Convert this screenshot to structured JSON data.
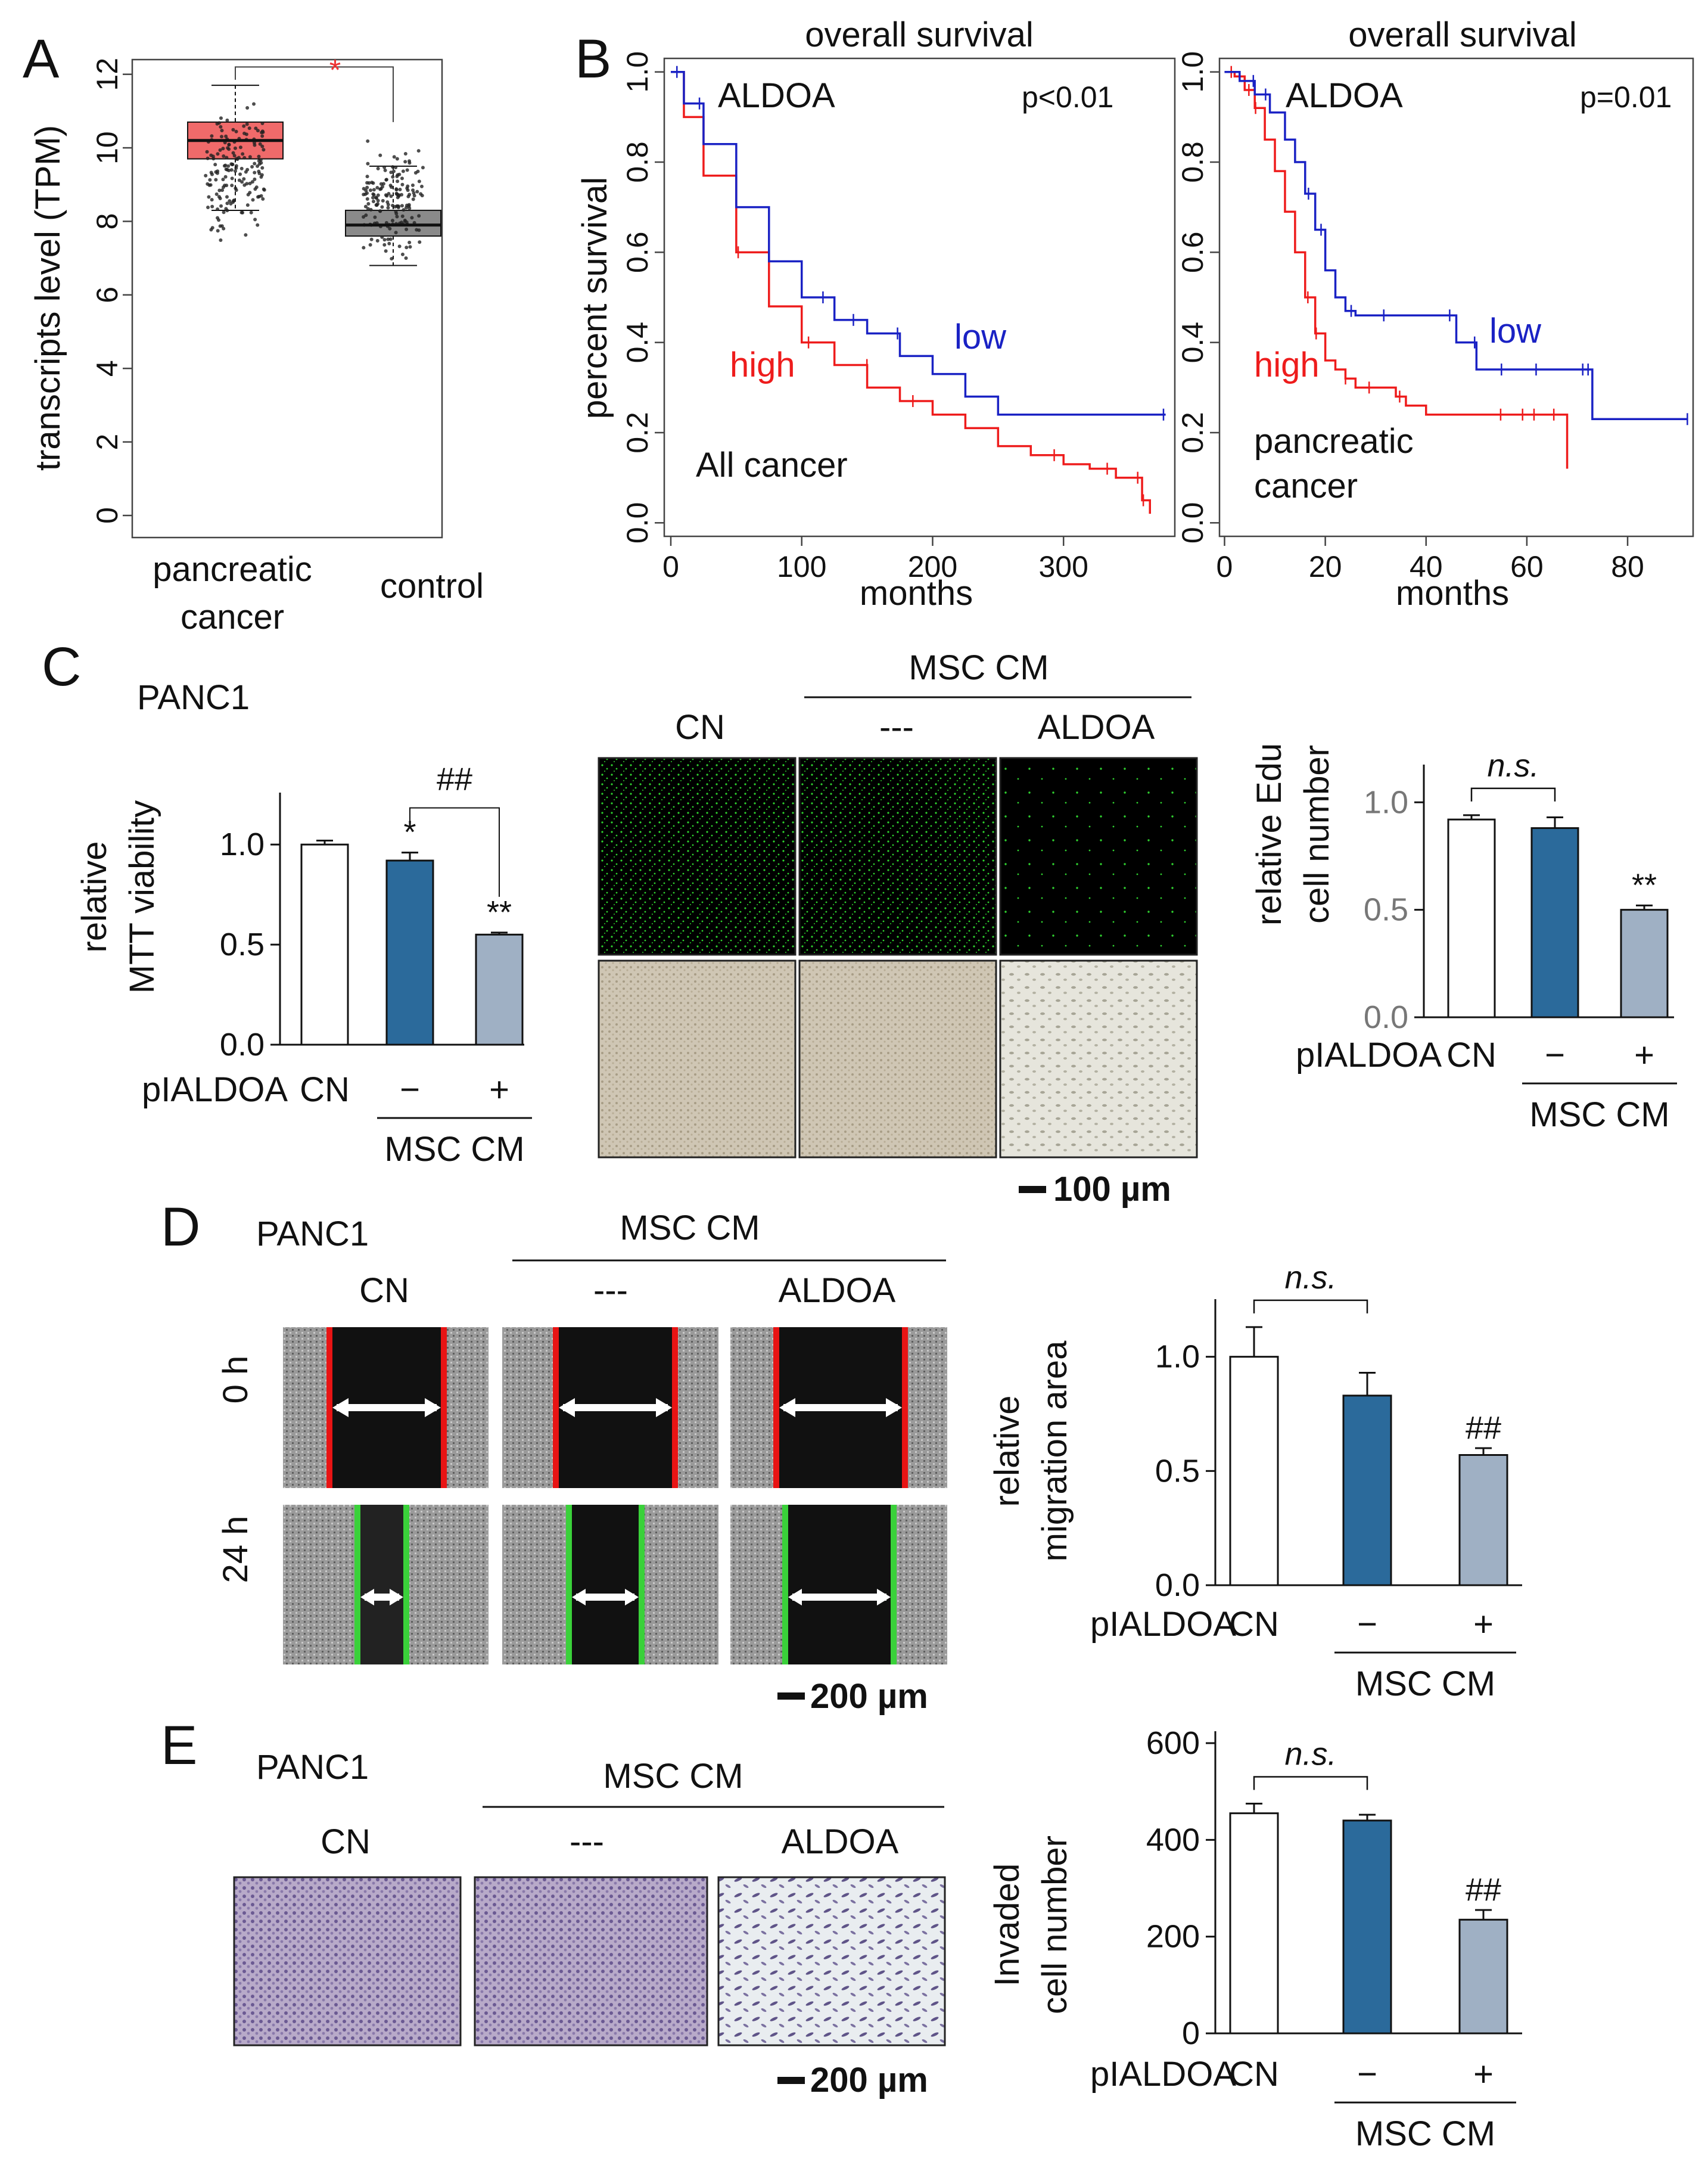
{
  "figure": {
    "panel_letters": [
      "A",
      "B",
      "C",
      "D",
      "E"
    ],
    "scale_bars": {
      "c": "100 µm",
      "d": "200 µm",
      "e": "200 µm"
    }
  },
  "colors": {
    "high_red": "#ee1c1c",
    "low_blue": "#1a22c4",
    "box_red": "#f06a6a",
    "box_gray": "#8a8a8a",
    "bar_blue": "#2b6a9b",
    "bar_gray": "#9fb0c4",
    "fluorescence_green": "#2fd12f",
    "wound_red": "#e81414",
    "wound_green": "#3ad13a"
  },
  "panel_a": {
    "ylabel": "transcripts level (TPM)",
    "categories": [
      "pancreatic cancer",
      "control"
    ],
    "significance": "*"
  },
  "panel_b": {
    "left": {
      "title": "overall survival",
      "gene": "ALDOA",
      "pvalue": "p<0.01",
      "cohort": "All cancer",
      "xlabel": "months",
      "ylabel": "percent survival",
      "high": "high",
      "low": "low"
    },
    "right": {
      "title": "overall survival",
      "gene": "ALDOA",
      "pvalue": "p=0.01",
      "cohort_line1": "pancreatic",
      "cohort_line2": "cancer",
      "xlabel": "months",
      "high": "high",
      "low": "low"
    }
  },
  "panel_c": {
    "cell_line": "PANC1",
    "mtt": {
      "ylabel_line1": "relative",
      "ylabel_line2": "MTT viability",
      "hash": "##"
    },
    "edu": {
      "ylabel_line1": "relative Edu",
      "ylabel_line2": "cell number",
      "ns": "n.s."
    },
    "images": {
      "group": "MSC CM",
      "columns": [
        "CN",
        "---",
        "ALDOA"
      ]
    }
  },
  "panel_d": {
    "cell_line": "PANC1",
    "images": {
      "group": "MSC CM",
      "columns": [
        "CN",
        "---",
        "ALDOA"
      ],
      "rows": [
        "0 h",
        "24 h"
      ]
    },
    "chart": {
      "ylabel_line1": "relative",
      "ylabel_line2": "migration area",
      "ns": "n.s."
    }
  },
  "panel_e": {
    "cell_line": "PANC1",
    "images": {
      "group": "MSC CM",
      "columns": [
        "CN",
        "---",
        "ALDOA"
      ]
    },
    "chart": {
      "ylabel_line1": "Invaded",
      "ylabel_line2": "cell number",
      "ns": "n.s."
    }
  },
  "treatment_axis": {
    "label": "pIALDOA",
    "cn": "CN",
    "minus": "−",
    "plus": "+",
    "group": "MSC CM"
  },
  "chart_data": [
    {
      "id": "A",
      "type": "box",
      "categories": [
        "pancreatic cancer",
        "control"
      ],
      "ylabel": "transcripts level (TPM)",
      "ylim": [
        -0.6,
        12.4
      ],
      "yticks": [
        0,
        2,
        4,
        6,
        8,
        10,
        12
      ],
      "boxes": [
        {
          "category": "pancreatic cancer",
          "whisker_low": 8.3,
          "q1": 9.7,
          "median": 10.2,
          "q3": 10.7,
          "whisker_high": 11.7,
          "min": 7.2,
          "max": 11.8
        },
        {
          "category": "control",
          "whisker_low": 6.8,
          "q1": 7.6,
          "median": 7.9,
          "q3": 8.3,
          "whisker_high": 9.5,
          "min": 6.4,
          "max": 10.6
        }
      ],
      "significance": "*",
      "grid": false
    },
    {
      "id": "B-left",
      "type": "line",
      "title": "overall survival",
      "xlabel": "months",
      "ylabel": "percent survival",
      "xlim": [
        -5,
        385
      ],
      "ylim": [
        -0.03,
        1.03
      ],
      "xticks": [
        0,
        100,
        200,
        300
      ],
      "yticks": [
        0.0,
        0.2,
        0.4,
        0.6,
        0.8,
        1.0
      ],
      "series": [
        {
          "name": "high",
          "x": [
            0,
            10,
            25,
            50,
            75,
            100,
            125,
            150,
            175,
            200,
            225,
            250,
            275,
            300,
            320,
            340,
            360,
            366
          ],
          "y": [
            1.0,
            0.9,
            0.77,
            0.6,
            0.48,
            0.4,
            0.35,
            0.3,
            0.27,
            0.24,
            0.21,
            0.17,
            0.15,
            0.13,
            0.12,
            0.1,
            0.05,
            0.02
          ]
        },
        {
          "name": "low",
          "x": [
            0,
            10,
            25,
            50,
            75,
            100,
            125,
            150,
            175,
            200,
            225,
            250,
            300,
            378
          ],
          "y": [
            1.0,
            0.93,
            0.84,
            0.7,
            0.58,
            0.5,
            0.45,
            0.42,
            0.37,
            0.33,
            0.28,
            0.24,
            0.24,
            0.24
          ]
        }
      ],
      "annotations": [
        "ALDOA",
        "p<0.01",
        "All cancer"
      ],
      "grid": false
    },
    {
      "id": "B-right",
      "type": "line",
      "title": "overall survival",
      "xlabel": "months",
      "xlim": [
        -1,
        93
      ],
      "ylim": [
        -0.03,
        1.03
      ],
      "xticks": [
        0,
        20,
        40,
        60,
        80
      ],
      "yticks": [
        0.0,
        0.2,
        0.4,
        0.6,
        0.8,
        1.0
      ],
      "series": [
        {
          "name": "high",
          "x": [
            0,
            2,
            4,
            6,
            8,
            10,
            12,
            14,
            16,
            18,
            20,
            22,
            24,
            26,
            30,
            34,
            36,
            40,
            44,
            48,
            52,
            56,
            60,
            64,
            66,
            68
          ],
          "y": [
            1.0,
            0.99,
            0.96,
            0.92,
            0.85,
            0.78,
            0.69,
            0.6,
            0.5,
            0.42,
            0.36,
            0.34,
            0.32,
            0.3,
            0.3,
            0.28,
            0.26,
            0.24,
            0.24,
            0.24,
            0.24,
            0.24,
            0.24,
            0.24,
            0.24,
            0.12
          ]
        },
        {
          "name": "low",
          "x": [
            0,
            3,
            6,
            9,
            12,
            14,
            16,
            18,
            20,
            22,
            24,
            26,
            30,
            36,
            40,
            44,
            46,
            50,
            55,
            60,
            65,
            70,
            72,
            73,
            78,
            85,
            92
          ],
          "y": [
            1.0,
            0.98,
            0.95,
            0.91,
            0.85,
            0.8,
            0.73,
            0.65,
            0.56,
            0.5,
            0.47,
            0.46,
            0.46,
            0.46,
            0.46,
            0.46,
            0.4,
            0.34,
            0.34,
            0.34,
            0.34,
            0.34,
            0.34,
            0.23,
            0.23,
            0.23,
            0.23
          ]
        }
      ],
      "annotations": [
        "ALDOA",
        "p=0.01",
        "pancreatic cancer"
      ],
      "grid": false
    },
    {
      "id": "C-MTT",
      "type": "bar",
      "categories": [
        "CN",
        "−",
        "+"
      ],
      "values": [
        1.0,
        0.92,
        0.55
      ],
      "errors": [
        0.02,
        0.04,
        0.01
      ],
      "ylim": [
        0,
        1.2
      ],
      "yticks": [
        0.0,
        0.5,
        1.0
      ],
      "bar_colors": [
        "#ffffff",
        "#2b6a9b",
        "#9fb0c4"
      ],
      "labels_above": [
        "",
        "*",
        "**"
      ],
      "bracket": {
        "from": 1,
        "to": 2,
        "label": "##"
      },
      "grid": false
    },
    {
      "id": "C-Edu",
      "type": "bar",
      "categories": [
        "CN",
        "−",
        "+"
      ],
      "values": [
        0.92,
        0.88,
        0.5
      ],
      "errors": [
        0.02,
        0.05,
        0.02
      ],
      "ylim": [
        0,
        1.12
      ],
      "yticks": [
        0.0,
        0.5,
        1.0
      ],
      "bar_colors": [
        "#ffffff",
        "#2b6a9b",
        "#9fb0c4"
      ],
      "labels_above": [
        "",
        "",
        "**"
      ],
      "bracket": {
        "from": 0,
        "to": 1,
        "label": "n.s."
      },
      "grid": false
    },
    {
      "id": "D",
      "type": "bar",
      "categories": [
        "CN",
        "−",
        "+"
      ],
      "values": [
        1.0,
        0.83,
        0.57
      ],
      "errors": [
        0.13,
        0.1,
        0.03
      ],
      "ylim": [
        0,
        1.2
      ],
      "yticks": [
        0.0,
        0.5,
        1.0
      ],
      "bar_colors": [
        "#ffffff",
        "#2b6a9b",
        "#9fb0c4"
      ],
      "labels_above": [
        "",
        "",
        "##"
      ],
      "bracket": {
        "from": 0,
        "to": 1,
        "label": "n.s."
      },
      "grid": false
    },
    {
      "id": "E",
      "type": "bar",
      "categories": [
        "CN",
        "−",
        "+"
      ],
      "values": [
        455,
        440,
        235
      ],
      "errors": [
        20,
        12,
        20
      ],
      "ylim": [
        0,
        600
      ],
      "yticks": [
        0,
        200,
        400,
        600
      ],
      "bar_colors": [
        "#ffffff",
        "#2b6a9b",
        "#9fb0c4"
      ],
      "labels_above": [
        "",
        "",
        "##"
      ],
      "bracket": {
        "from": 0,
        "to": 1,
        "label": "n.s."
      },
      "grid": false
    }
  ]
}
